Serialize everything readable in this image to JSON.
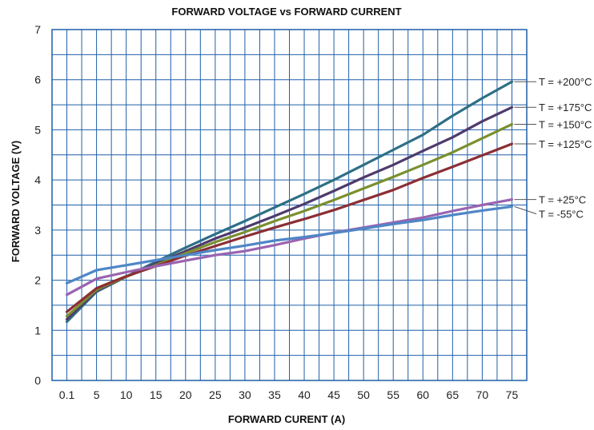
{
  "chart_data": {
    "type": "line",
    "title": "FORWARD VOLTAGE vs FORWARD CURRENT",
    "xlabel": "FORWARD CURENT (A)",
    "ylabel": "FORWARD VOLTAGE (V)",
    "categories": [
      "0.1",
      "5",
      "10",
      "15",
      "20",
      "25",
      "30",
      "35",
      "40",
      "45",
      "50",
      "55",
      "60",
      "65",
      "70",
      "75"
    ],
    "ylim": [
      0,
      7
    ],
    "yticks": [
      "0",
      "1",
      "2",
      "3",
      "4",
      "5",
      "6",
      "7"
    ],
    "grid": true,
    "legend": "right",
    "series": [
      {
        "name": "T = +200°C",
        "color": "#2e6f86",
        "values": [
          1.17,
          1.77,
          2.07,
          2.37,
          2.65,
          2.92,
          3.18,
          3.45,
          3.72,
          4.0,
          4.3,
          4.6,
          4.9,
          5.28,
          5.63,
          5.96
        ]
      },
      {
        "name": "T = +175°C",
        "color": "#4e3b6d",
        "values": [
          1.22,
          1.79,
          2.07,
          2.33,
          2.58,
          2.83,
          3.05,
          3.28,
          3.52,
          3.78,
          4.05,
          4.3,
          4.58,
          4.85,
          5.17,
          5.45
        ]
      },
      {
        "name": "T = +150°C",
        "color": "#7a8f2e",
        "values": [
          1.28,
          1.81,
          2.07,
          2.3,
          2.54,
          2.76,
          2.96,
          3.18,
          3.38,
          3.6,
          3.83,
          4.06,
          4.3,
          4.55,
          4.83,
          5.11
        ]
      },
      {
        "name": "T = +125°C",
        "color": "#8b2f35",
        "values": [
          1.37,
          1.84,
          2.08,
          2.28,
          2.49,
          2.68,
          2.87,
          3.05,
          3.22,
          3.4,
          3.6,
          3.8,
          4.04,
          4.26,
          4.49,
          4.72
        ]
      },
      {
        "name": "T = +25°C",
        "color": "#9a63b0",
        "values": [
          1.71,
          2.03,
          2.16,
          2.28,
          2.39,
          2.5,
          2.58,
          2.7,
          2.83,
          2.95,
          3.05,
          3.15,
          3.25,
          3.38,
          3.5,
          3.61
        ]
      },
      {
        "name": "T = -55°C",
        "color": "#4f86c6",
        "values": [
          1.94,
          2.2,
          2.3,
          2.4,
          2.5,
          2.6,
          2.69,
          2.79,
          2.86,
          2.94,
          3.03,
          3.12,
          3.2,
          3.3,
          3.39,
          3.47
        ]
      }
    ]
  }
}
